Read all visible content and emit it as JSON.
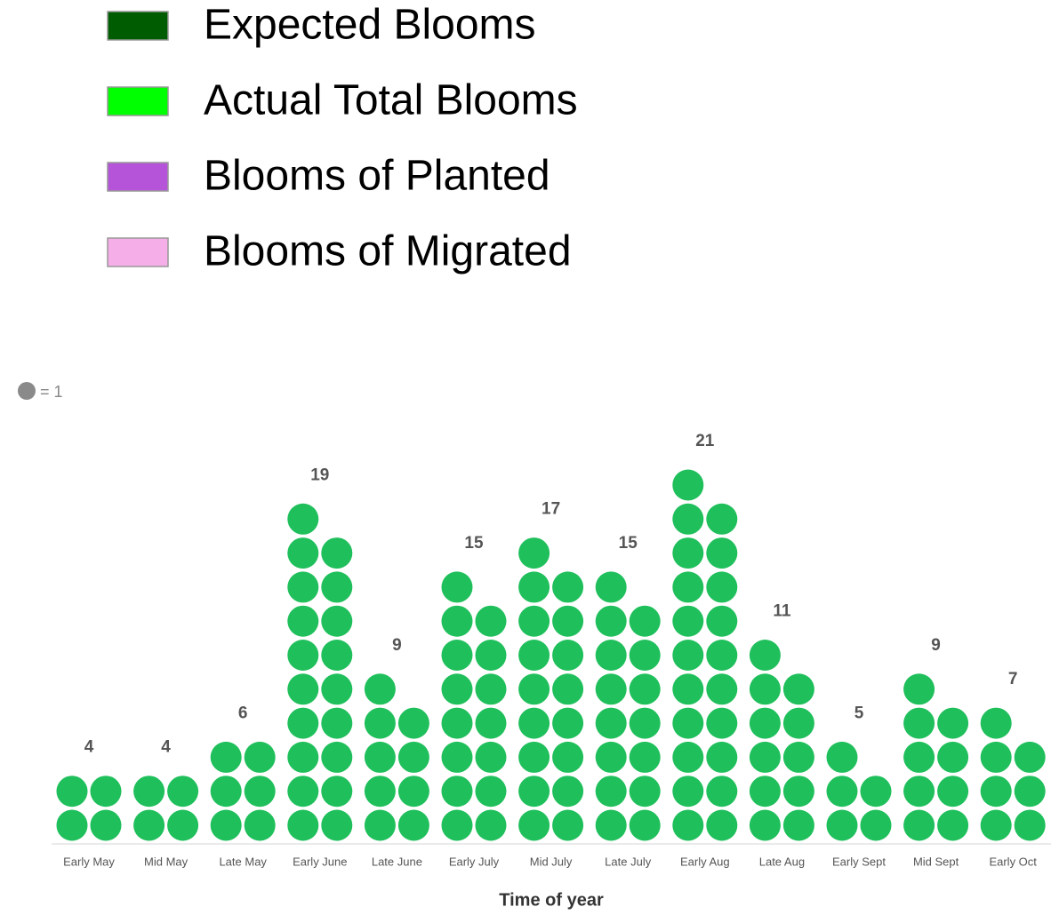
{
  "chart_data": {
    "type": "dot",
    "legend": [
      {
        "name": "Expected Blooms",
        "color": "#005c00"
      },
      {
        "name": "Actual Total Blooms",
        "color": "#00ff00"
      },
      {
        "name": "Blooms of Planted",
        "color": "#b554d9"
      },
      {
        "name": "Blooms of Migrated",
        "color": "#f5aee8"
      }
    ],
    "unit_label": "= 1",
    "unit_color": "#8a8a8a",
    "categories": [
      "Early May",
      "Mid May",
      "Late May",
      "Early June",
      "Late June",
      "Early July",
      "Mid July",
      "Late July",
      "Early Aug",
      "Late Aug",
      "Early Sept",
      "Mid Sept",
      "Early Oct"
    ],
    "values": [
      4,
      4,
      6,
      19,
      9,
      15,
      17,
      15,
      21,
      11,
      5,
      9,
      7
    ],
    "color": "#1fbf5b",
    "xlabel": "Time of year"
  }
}
